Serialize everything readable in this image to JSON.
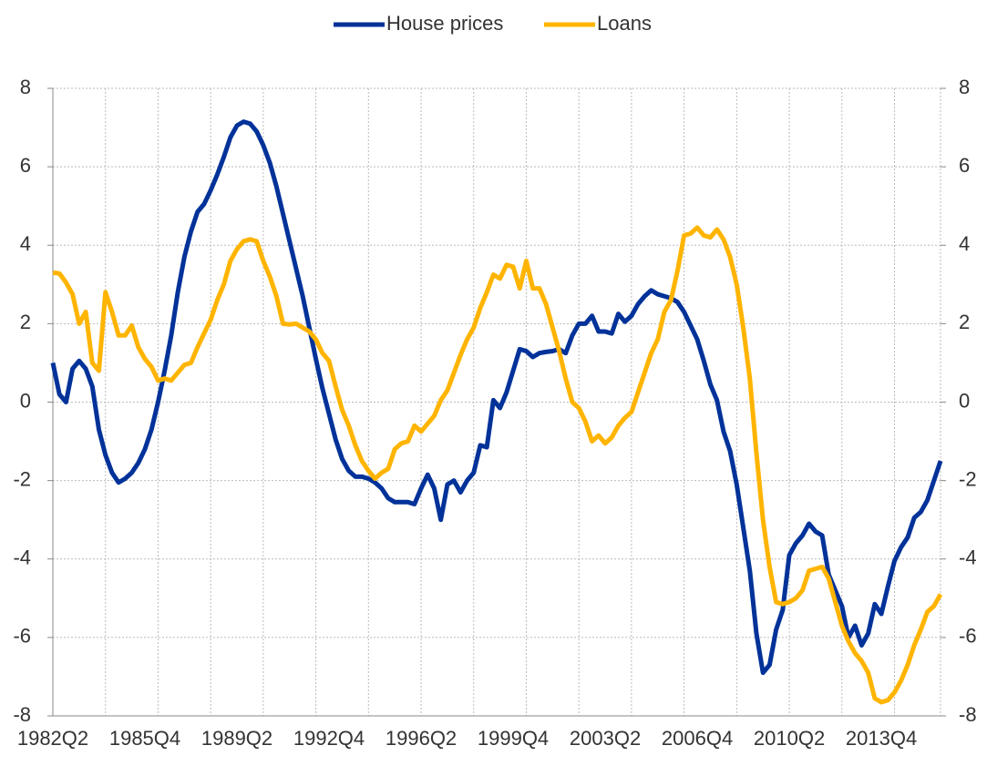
{
  "chart_data": {
    "type": "line",
    "categories": [
      "1982Q2",
      null,
      null,
      null,
      null,
      null,
      null,
      null,
      null,
      null,
      null,
      null,
      null,
      null,
      "1985Q4",
      null,
      null,
      null,
      null,
      null,
      null,
      null,
      null,
      null,
      null,
      null,
      null,
      null,
      "1989Q2",
      null,
      null,
      null,
      null,
      null,
      null,
      null,
      null,
      null,
      null,
      null,
      null,
      null,
      "1992Q4",
      null,
      null,
      null,
      null,
      null,
      null,
      null,
      null,
      null,
      null,
      null,
      null,
      null,
      "1996Q2",
      null,
      null,
      null,
      null,
      null,
      null,
      null,
      null,
      null,
      null,
      null,
      null,
      null,
      "1999Q4",
      null,
      null,
      null,
      null,
      null,
      null,
      null,
      null,
      null,
      null,
      null,
      null,
      null,
      "2003Q2",
      null,
      null,
      null,
      null,
      null,
      null,
      null,
      null,
      null,
      null,
      null,
      null,
      null,
      "2006Q4",
      null,
      null,
      null,
      null,
      null,
      null,
      null,
      null,
      null,
      null,
      null,
      null,
      null,
      "2010Q2",
      null,
      null,
      null,
      null,
      null,
      null,
      null,
      null,
      null,
      null,
      null,
      null,
      null,
      "2013Q4",
      null,
      null,
      null,
      null,
      null,
      null,
      null,
      null,
      null
    ],
    "series": [
      {
        "name": "House prices",
        "color": "#003299",
        "values": [
          1.0,
          0.2,
          0.0,
          0.85,
          1.05,
          0.85,
          0.4,
          -0.7,
          -1.35,
          -1.8,
          -2.05,
          -1.95,
          -1.8,
          -1.55,
          -1.2,
          -0.7,
          0.0,
          0.8,
          1.7,
          2.8,
          3.7,
          4.35,
          4.85,
          5.05,
          5.4,
          5.8,
          6.25,
          6.75,
          7.05,
          7.15,
          7.1,
          6.9,
          6.55,
          6.1,
          5.5,
          4.8,
          4.1,
          3.4,
          2.7,
          1.9,
          1.1,
          0.35,
          -0.3,
          -0.95,
          -1.45,
          -1.75,
          -1.9,
          -1.9,
          -1.95,
          -2.05,
          -2.2,
          -2.45,
          -2.55,
          -2.55,
          -2.55,
          -2.6,
          -2.2,
          -1.85,
          -2.2,
          -3.0,
          -2.1,
          -2.0,
          -2.3,
          -2.0,
          -1.8,
          -1.1,
          -1.15,
          0.05,
          -0.15,
          0.25,
          0.8,
          1.35,
          1.3,
          1.15,
          1.25,
          1.28,
          1.3,
          1.35,
          1.25,
          1.7,
          2.0,
          2.0,
          2.2,
          1.8,
          1.8,
          1.75,
          2.25,
          2.05,
          2.2,
          2.5,
          2.7,
          2.85,
          2.75,
          2.7,
          2.65,
          2.55,
          2.3,
          1.95,
          1.6,
          1.05,
          0.45,
          0.05,
          -0.75,
          -1.25,
          -2.1,
          -3.2,
          -4.3,
          -5.9,
          -6.9,
          -6.7,
          -5.8,
          -5.3,
          -3.9,
          -3.6,
          -3.4,
          -3.1,
          -3.3,
          -3.4,
          -4.4,
          -4.8,
          -5.2,
          -6.0,
          -5.7,
          -6.2,
          -5.9,
          -5.15,
          -5.4,
          -4.7,
          -4.05,
          -3.7,
          -3.45,
          -2.95,
          -2.8,
          -2.5,
          -2.0,
          -1.5
        ]
      },
      {
        "name": "Loans",
        "color": "#ffb400",
        "values": [
          3.3,
          3.28,
          3.05,
          2.75,
          2.0,
          2.3,
          1.0,
          0.8,
          2.8,
          2.3,
          1.7,
          1.7,
          1.95,
          1.4,
          1.1,
          0.9,
          0.55,
          0.6,
          0.55,
          0.75,
          0.95,
          1.0,
          1.4,
          1.75,
          2.1,
          2.6,
          3.0,
          3.6,
          3.9,
          4.1,
          4.15,
          4.1,
          3.6,
          3.2,
          2.7,
          2.0,
          1.98,
          2.0,
          1.9,
          1.8,
          1.6,
          1.25,
          1.05,
          0.4,
          -0.2,
          -0.6,
          -1.1,
          -1.5,
          -1.75,
          -1.95,
          -1.8,
          -1.7,
          -1.2,
          -1.05,
          -1.0,
          -0.6,
          -0.75,
          -0.55,
          -0.35,
          0.05,
          0.3,
          0.75,
          1.2,
          1.6,
          1.9,
          2.4,
          2.8,
          3.25,
          3.15,
          3.5,
          3.45,
          2.9,
          3.6,
          2.9,
          2.9,
          2.5,
          1.9,
          1.3,
          0.6,
          0.0,
          -0.15,
          -0.5,
          -1.0,
          -0.85,
          -1.05,
          -0.9,
          -0.6,
          -0.4,
          -0.25,
          0.25,
          0.75,
          1.25,
          1.6,
          2.3,
          2.6,
          3.35,
          4.25,
          4.3,
          4.45,
          4.25,
          4.2,
          4.4,
          4.15,
          3.7,
          3.0,
          1.9,
          0.6,
          -1.3,
          -3.0,
          -4.2,
          -5.1,
          -5.15,
          -5.1,
          -5.0,
          -4.8,
          -4.3,
          -4.25,
          -4.2,
          -4.5,
          -5.1,
          -5.7,
          -6.1,
          -6.4,
          -6.6,
          -6.9,
          -7.55,
          -7.65,
          -7.6,
          -7.4,
          -7.1,
          -6.7,
          -6.2,
          -5.8,
          -5.35,
          -5.2,
          -4.9
        ]
      }
    ],
    "ylim": [
      -8,
      8
    ],
    "yticks": [
      -8,
      -6,
      -4,
      -2,
      0,
      2,
      4,
      6,
      8
    ],
    "y2lim": [
      -8,
      8
    ],
    "y2ticks": [
      -8,
      -6,
      -4,
      -2,
      0,
      2,
      4,
      6,
      8
    ],
    "grid": true,
    "legend": "top"
  }
}
